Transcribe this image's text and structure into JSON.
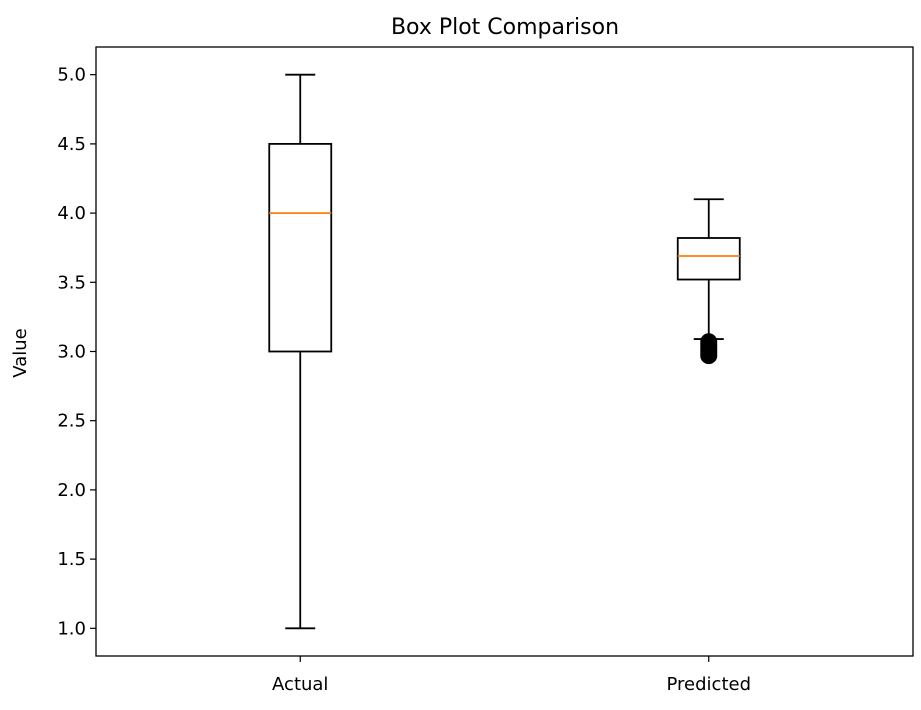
{
  "chart_data": {
    "type": "box",
    "title": "Box Plot Comparison",
    "xlabel": "",
    "ylabel": "Value",
    "ylim": [
      0.8,
      5.2
    ],
    "yticks": [
      "1.0",
      "1.5",
      "2.0",
      "2.5",
      "3.0",
      "3.5",
      "4.0",
      "4.5",
      "5.0"
    ],
    "grid": false,
    "colors": {
      "box": "#000000",
      "median": "#ff7f0e",
      "flier": "#000000"
    },
    "series": [
      {
        "category": "Actual",
        "whisker_low": 1.0,
        "q1": 3.0,
        "median": 4.0,
        "q3": 4.5,
        "whisker_high": 5.0,
        "outliers": []
      },
      {
        "category": "Predicted",
        "whisker_low": 3.09,
        "q1": 3.52,
        "median": 3.69,
        "q3": 3.82,
        "whisker_high": 4.1,
        "outliers": [
          3.07,
          3.05,
          3.03,
          3.01,
          2.99,
          2.97
        ]
      }
    ]
  }
}
